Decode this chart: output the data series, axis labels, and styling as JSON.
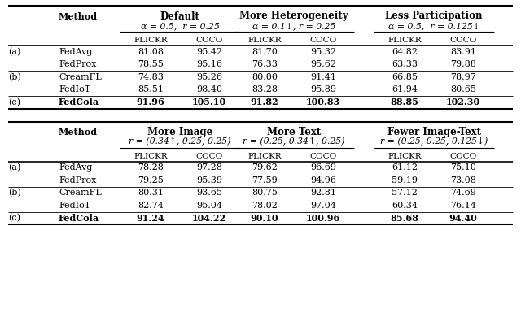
{
  "table1": {
    "top_headers": [
      "Default",
      "More Heterogeneity",
      "Less Participation"
    ],
    "mid_headers": [
      "α = 0.5,  r = 0.25",
      "α = 0.1↓, r = 0.25",
      "α = 0.5,  r = 0.125↓"
    ],
    "rows": [
      {
        "label": "(a)",
        "method": "FedAvg",
        "vals": [
          "81.08",
          "95.42",
          "81.70",
          "95.32",
          "64.82",
          "83.91"
        ],
        "bold": false
      },
      {
        "label": "",
        "method": "FedProx",
        "vals": [
          "78.55",
          "95.16",
          "76.33",
          "95.62",
          "63.33",
          "79.88"
        ],
        "bold": false
      },
      {
        "label": "(b)",
        "method": "CreamFL",
        "vals": [
          "74.83",
          "95.26",
          "80.00",
          "91.41",
          "66.85",
          "78.97"
        ],
        "bold": false
      },
      {
        "label": "",
        "method": "FedIoT",
        "vals": [
          "85.51",
          "98.40",
          "83.28",
          "95.89",
          "61.94",
          "80.65"
        ],
        "bold": false
      },
      {
        "label": "(c)",
        "method": "FedCola",
        "vals": [
          "91.96",
          "105.10",
          "91.82",
          "100.83",
          "88.85",
          "102.30"
        ],
        "bold": true
      }
    ]
  },
  "table2": {
    "top_headers": [
      "More Image",
      "More Text",
      "Fewer Image-Text"
    ],
    "mid_headers": [
      "r = (0.34↑, 0.25, 0.25)",
      "r = (0.25, 0.34↑, 0.25)",
      "r = (0.25, 0.25, 0.125↓)"
    ],
    "rows": [
      {
        "label": "(a)",
        "method": "FedAvg",
        "vals": [
          "78.28",
          "97.28",
          "79.62",
          "96.69",
          "61.12",
          "75.10"
        ],
        "bold": false
      },
      {
        "label": "",
        "method": "FedProx",
        "vals": [
          "79.25",
          "95.39",
          "77.59",
          "94.96",
          "59.19",
          "73.08"
        ],
        "bold": false
      },
      {
        "label": "(b)",
        "method": "CreamFL",
        "vals": [
          "80.31",
          "93.65",
          "80.75",
          "92.81",
          "57.12",
          "74.69"
        ],
        "bold": false
      },
      {
        "label": "",
        "method": "FedIoT",
        "vals": [
          "82.74",
          "95.04",
          "78.02",
          "97.04",
          "60.34",
          "76.14"
        ],
        "bold": false
      },
      {
        "label": "(c)",
        "method": "FedCola",
        "vals": [
          "91.24",
          "104.22",
          "90.10",
          "100.96",
          "85.68",
          "94.40"
        ],
        "bold": true
      }
    ]
  },
  "bg_color": "#ffffff",
  "text_color": "#000000",
  "line_color": "#000000"
}
